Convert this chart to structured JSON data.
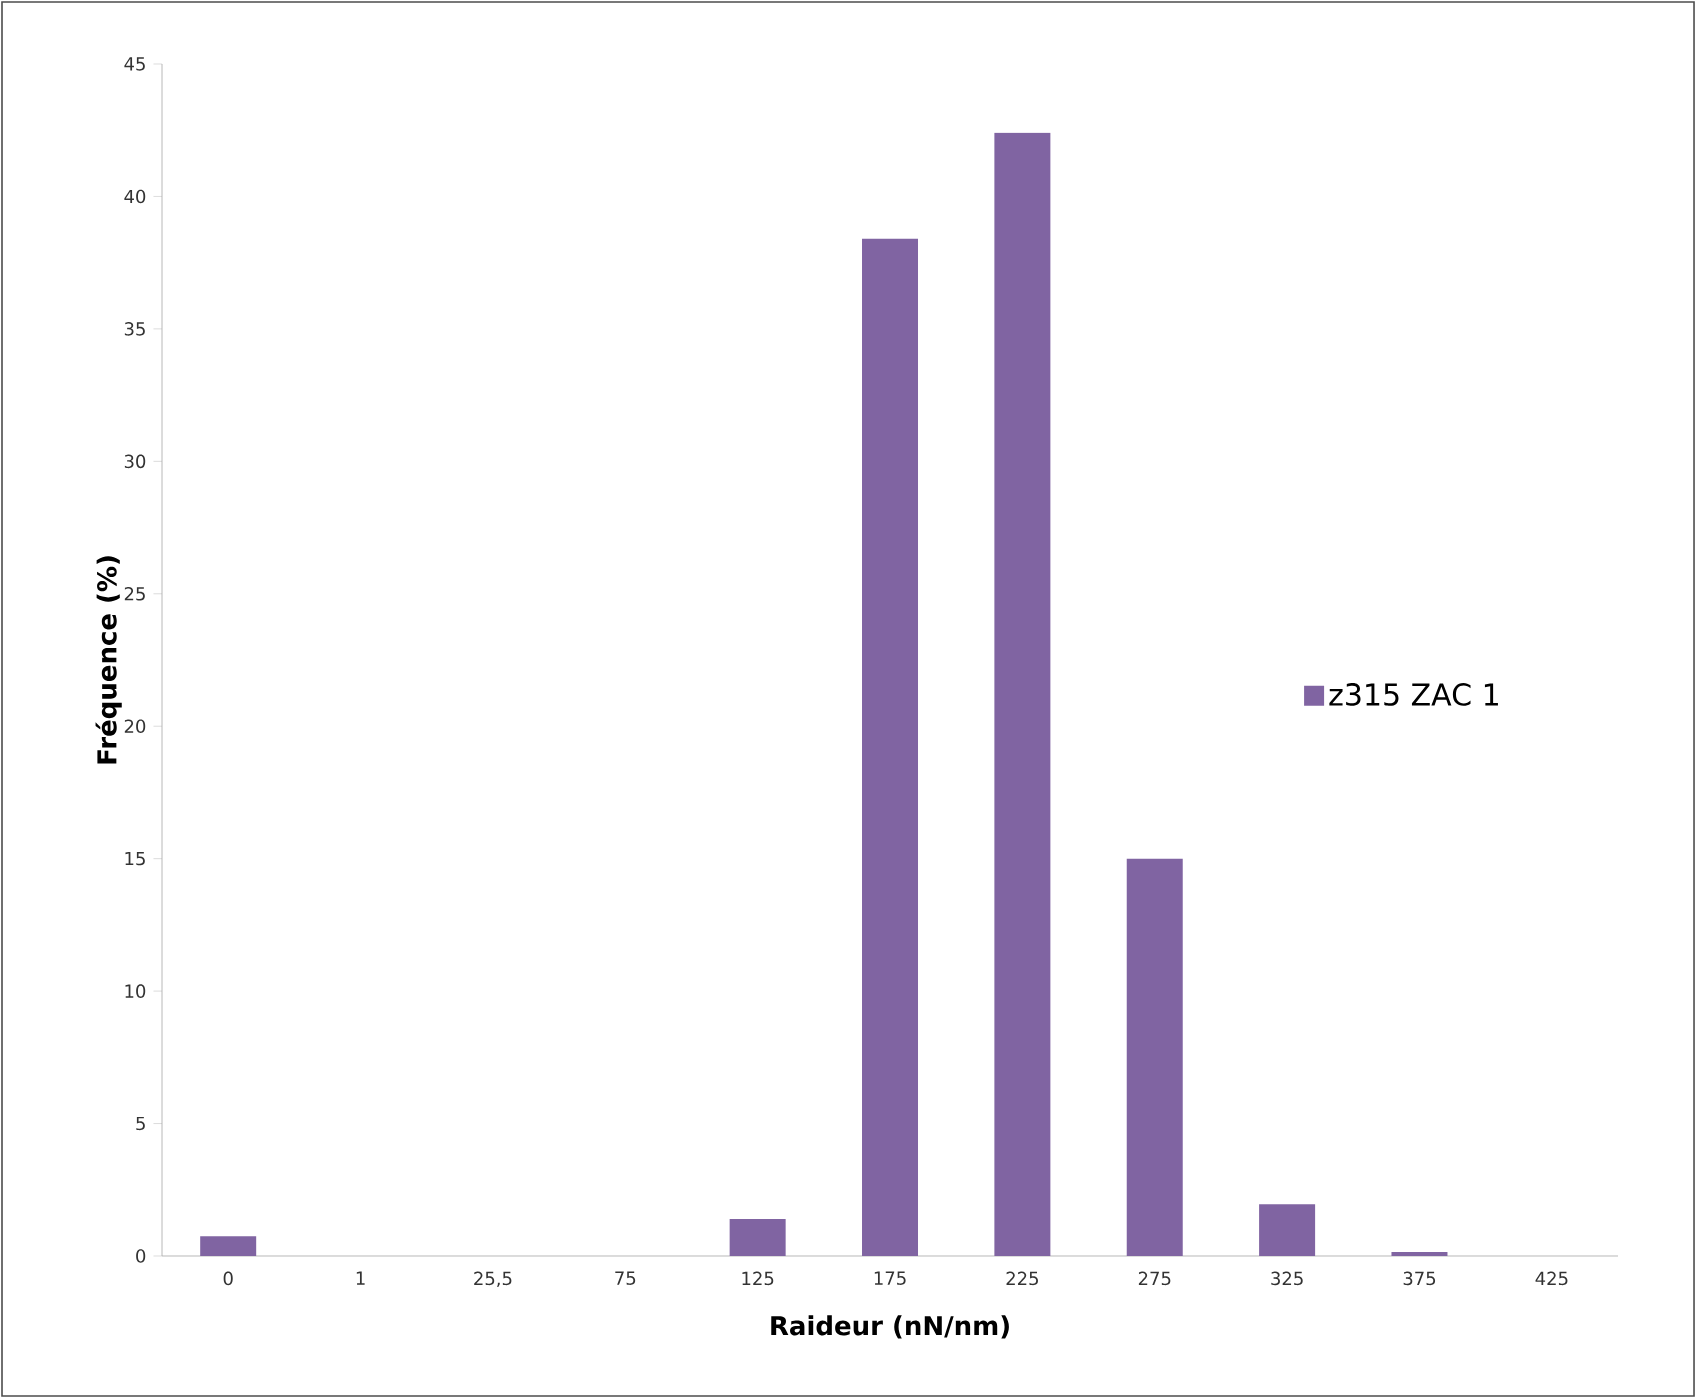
{
  "chart_data": {
    "type": "bar",
    "xlabel": "Raideur (nN/nm)",
    "ylabel": "Fréquence (%)",
    "categories": [
      "0",
      "1",
      "25,5",
      "75",
      "125",
      "175",
      "225",
      "275",
      "325",
      "375",
      "425"
    ],
    "series": [
      {
        "name": "z315 ZAC 1",
        "color": "#8064a2",
        "values": [
          0.75,
          0,
          0,
          0,
          1.4,
          38.4,
          42.4,
          15.0,
          1.95,
          0.15,
          0
        ]
      }
    ],
    "ylim": [
      0,
      45
    ],
    "yticks": [
      0,
      5,
      10,
      15,
      20,
      25,
      30,
      35,
      40,
      45
    ],
    "grid": false,
    "legend": "right"
  }
}
